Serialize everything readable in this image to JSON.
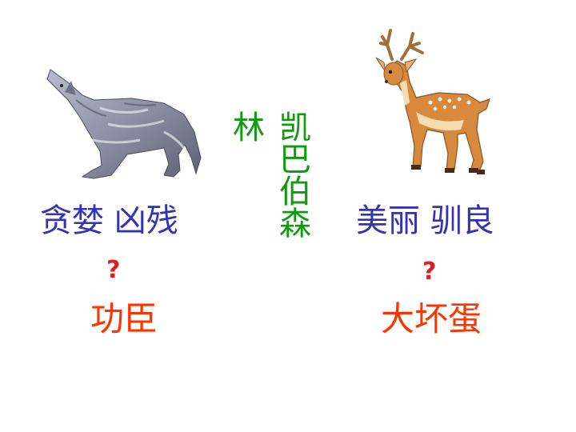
{
  "colors": {
    "trait": "#3333b3",
    "question": "#e02020",
    "verdict": "#ff3300",
    "author": "#119911"
  },
  "wolf": {
    "icon": "wolf-image",
    "traits": "贪婪 凶残",
    "question": "?",
    "verdict": "功臣"
  },
  "deer": {
    "icon": "deer-image",
    "traits": "美丽 驯良",
    "question": "?",
    "verdict": "大坏蛋"
  },
  "author": {
    "line1": "凯巴伯森",
    "line2": "林"
  }
}
